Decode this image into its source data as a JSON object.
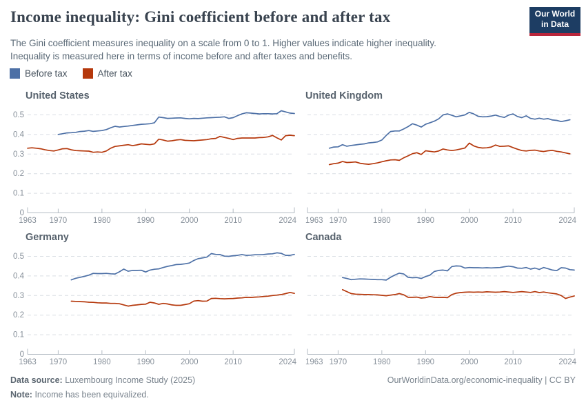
{
  "header": {
    "title": "Income inequality: Gini coefficient before and after tax",
    "subtitle": [
      "The Gini coefficient measures inequality on a scale from 0 to 1. Higher values indicate higher inequality.",
      "Inequality is measured here in terms of income before and after taxes and benefits."
    ],
    "logo": {
      "line1": "Our World",
      "line2": "in Data",
      "bg_color": "#1d3d63",
      "accent_color": "#b9263b"
    }
  },
  "legend": {
    "items": [
      {
        "label": "Before tax",
        "color": "#4d70a6"
      },
      {
        "label": "After tax",
        "color": "#b5380c"
      }
    ]
  },
  "chart_data": {
    "type": "line",
    "title": "Income inequality: Gini coefficient before and after tax",
    "xlabel": "",
    "ylabel": "Gini coefficient",
    "xlim": [
      1963,
      2024
    ],
    "ylim": [
      0,
      0.54
    ],
    "x_ticks": [
      1963,
      1970,
      1980,
      1990,
      2000,
      2010,
      2024
    ],
    "y_ticks": [
      0,
      0.1,
      0.2,
      0.3,
      0.4,
      0.5
    ],
    "grid": "horizontal-dashed",
    "legend_position": "top-left",
    "charts": [
      {
        "country": "United States",
        "series": [
          {
            "name": "Before tax",
            "color": "#4d70a6",
            "start_year": 1970,
            "values": [
              0.4,
              0.404,
              0.408,
              0.409,
              0.411,
              0.415,
              0.417,
              0.42,
              0.416,
              0.418,
              0.42,
              0.425,
              0.434,
              0.442,
              0.438,
              0.441,
              0.443,
              0.446,
              0.449,
              0.452,
              0.453,
              0.455,
              0.46,
              0.489,
              0.486,
              0.482,
              0.483,
              0.484,
              0.485,
              0.482,
              0.48,
              0.482,
              0.481,
              0.483,
              0.485,
              0.486,
              0.487,
              0.488,
              0.49,
              0.482,
              0.486,
              0.496,
              0.505,
              0.511,
              0.509,
              0.507,
              0.505,
              0.506,
              0.506,
              0.505,
              0.506,
              0.521,
              0.515,
              0.509,
              0.507
            ]
          },
          {
            "name": "After tax",
            "color": "#b5380c",
            "start_year": 1963,
            "values": [
              0.33,
              0.332,
              0.33,
              0.327,
              0.322,
              0.318,
              0.316,
              0.321,
              0.327,
              0.328,
              0.322,
              0.318,
              0.317,
              0.316,
              0.315,
              0.309,
              0.311,
              0.309,
              0.316,
              0.33,
              0.339,
              0.342,
              0.345,
              0.348,
              0.343,
              0.347,
              0.352,
              0.35,
              0.348,
              0.352,
              0.376,
              0.372,
              0.366,
              0.368,
              0.372,
              0.374,
              0.37,
              0.369,
              0.368,
              0.37,
              0.372,
              0.374,
              0.378,
              0.38,
              0.39,
              0.385,
              0.38,
              0.374,
              0.38,
              0.382,
              0.382,
              0.382,
              0.382,
              0.384,
              0.385,
              0.388,
              0.395,
              0.383,
              0.372,
              0.394,
              0.396,
              0.394
            ]
          }
        ]
      },
      {
        "country": "United Kingdom",
        "series": [
          {
            "name": "Before tax",
            "color": "#4d70a6",
            "start_year": 1968,
            "values": [
              0.33,
              0.336,
              0.337,
              0.348,
              0.34,
              0.344,
              0.347,
              0.35,
              0.352,
              0.357,
              0.359,
              0.362,
              0.372,
              0.395,
              0.415,
              0.418,
              0.418,
              0.428,
              0.44,
              0.455,
              0.448,
              0.438,
              0.452,
              0.46,
              0.468,
              0.48,
              0.5,
              0.505,
              0.498,
              0.49,
              0.495,
              0.5,
              0.513,
              0.505,
              0.493,
              0.49,
              0.491,
              0.494,
              0.499,
              0.492,
              0.487,
              0.499,
              0.505,
              0.492,
              0.486,
              0.495,
              0.482,
              0.478,
              0.483,
              0.478,
              0.481,
              0.474,
              0.472,
              0.466,
              0.47,
              0.475
            ]
          },
          {
            "name": "After tax",
            "color": "#b5380c",
            "start_year": 1968,
            "values": [
              0.246,
              0.251,
              0.254,
              0.262,
              0.257,
              0.258,
              0.26,
              0.253,
              0.25,
              0.248,
              0.251,
              0.255,
              0.261,
              0.266,
              0.27,
              0.271,
              0.268,
              0.281,
              0.291,
              0.302,
              0.307,
              0.298,
              0.317,
              0.314,
              0.311,
              0.316,
              0.326,
              0.321,
              0.318,
              0.321,
              0.326,
              0.331,
              0.356,
              0.342,
              0.334,
              0.331,
              0.332,
              0.336,
              0.346,
              0.339,
              0.34,
              0.342,
              0.333,
              0.325,
              0.318,
              0.316,
              0.319,
              0.32,
              0.316,
              0.313,
              0.317,
              0.319,
              0.314,
              0.311,
              0.306,
              0.301
            ]
          }
        ]
      },
      {
        "country": "Germany",
        "series": [
          {
            "name": "Before tax",
            "color": "#4d70a6",
            "start_year": 1973,
            "values": [
              0.38,
              0.388,
              0.393,
              0.398,
              0.404,
              0.413,
              0.412,
              0.412,
              0.413,
              0.411,
              0.41,
              0.421,
              0.435,
              0.424,
              0.428,
              0.428,
              0.429,
              0.42,
              0.43,
              0.434,
              0.436,
              0.443,
              0.449,
              0.453,
              0.458,
              0.459,
              0.462,
              0.466,
              0.479,
              0.488,
              0.492,
              0.496,
              0.514,
              0.51,
              0.509,
              0.501,
              0.5,
              0.503,
              0.505,
              0.509,
              0.505,
              0.506,
              0.508,
              0.508,
              0.509,
              0.512,
              0.513,
              0.518,
              0.515,
              0.505,
              0.505,
              0.51
            ]
          },
          {
            "name": "After tax",
            "color": "#b5380c",
            "start_year": 1973,
            "values": [
              0.271,
              0.27,
              0.269,
              0.268,
              0.266,
              0.265,
              0.263,
              0.262,
              0.262,
              0.26,
              0.26,
              0.258,
              0.252,
              0.246,
              0.25,
              0.252,
              0.255,
              0.256,
              0.266,
              0.262,
              0.255,
              0.26,
              0.257,
              0.252,
              0.25,
              0.25,
              0.254,
              0.258,
              0.272,
              0.274,
              0.271,
              0.272,
              0.285,
              0.286,
              0.284,
              0.283,
              0.284,
              0.285,
              0.287,
              0.288,
              0.291,
              0.29,
              0.292,
              0.293,
              0.295,
              0.297,
              0.3,
              0.302,
              0.305,
              0.31,
              0.316,
              0.311
            ]
          }
        ]
      },
      {
        "country": "Canada",
        "series": [
          {
            "name": "Before tax",
            "color": "#4d70a6",
            "start_year": 1971,
            "values": [
              0.392,
              0.387,
              0.381,
              0.383,
              0.385,
              0.384,
              0.383,
              0.382,
              0.381,
              0.381,
              0.379,
              0.393,
              0.405,
              0.414,
              0.41,
              0.393,
              0.391,
              0.392,
              0.387,
              0.397,
              0.404,
              0.423,
              0.428,
              0.43,
              0.426,
              0.448,
              0.451,
              0.45,
              0.44,
              0.443,
              0.442,
              0.442,
              0.441,
              0.442,
              0.441,
              0.442,
              0.443,
              0.447,
              0.45,
              0.447,
              0.44,
              0.439,
              0.443,
              0.435,
              0.44,
              0.433,
              0.443,
              0.437,
              0.43,
              0.427,
              0.442,
              0.44,
              0.432,
              0.43
            ]
          },
          {
            "name": "After tax",
            "color": "#b5380c",
            "start_year": 1971,
            "values": [
              0.33,
              0.32,
              0.31,
              0.307,
              0.306,
              0.305,
              0.305,
              0.304,
              0.303,
              0.301,
              0.299,
              0.302,
              0.305,
              0.31,
              0.304,
              0.291,
              0.291,
              0.292,
              0.287,
              0.289,
              0.295,
              0.291,
              0.29,
              0.291,
              0.289,
              0.305,
              0.312,
              0.315,
              0.317,
              0.318,
              0.317,
              0.318,
              0.317,
              0.319,
              0.318,
              0.317,
              0.318,
              0.32,
              0.318,
              0.316,
              0.318,
              0.32,
              0.318,
              0.316,
              0.32,
              0.315,
              0.318,
              0.314,
              0.311,
              0.308,
              0.3,
              0.285,
              0.292,
              0.298
            ]
          }
        ]
      }
    ]
  },
  "footer": {
    "source_label": "Data source:",
    "source_text": "Luxembourg Income Study (2025)",
    "note_label": "Note:",
    "note_text": "Income has been equivalized.",
    "credit": "OurWorldinData.org/economic-inequality | CC BY"
  }
}
